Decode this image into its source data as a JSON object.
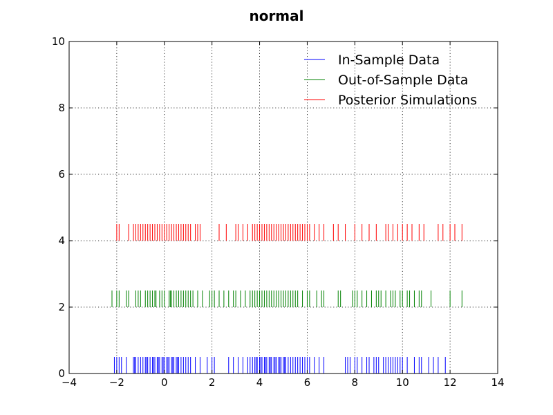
{
  "chart_data": {
    "type": "rug",
    "title": "normal",
    "xlabel": "",
    "ylabel": "",
    "xlim": [
      -4,
      14
    ],
    "ylim": [
      0,
      10
    ],
    "xticks": [
      "−4",
      "−2",
      "0",
      "2",
      "4",
      "6",
      "8",
      "10",
      "12",
      "14"
    ],
    "yticks": [
      "0",
      "2",
      "4",
      "6",
      "8",
      "10"
    ],
    "grid": true,
    "legend_position": "top-right",
    "series": [
      {
        "name": "In-Sample Data",
        "color": "#0000ff",
        "y_range": [
          0,
          0.5
        ],
        "values": [
          -2.1,
          -2.0,
          -1.9,
          -1.8,
          -1.6,
          -1.3,
          -1.25,
          -1.2,
          -1.1,
          -1.0,
          -0.9,
          -0.8,
          -0.75,
          -0.7,
          -0.6,
          -0.5,
          -0.45,
          -0.4,
          -0.3,
          -0.25,
          -0.2,
          -0.1,
          -0.05,
          0.0,
          0.1,
          0.15,
          0.2,
          0.3,
          0.35,
          0.4,
          0.5,
          0.55,
          0.6,
          0.7,
          0.8,
          0.9,
          1.0,
          1.1,
          1.3,
          1.5,
          1.8,
          2.0,
          2.1,
          2.7,
          2.9,
          3.1,
          3.3,
          3.5,
          3.6,
          3.7,
          3.8,
          3.85,
          3.9,
          4.0,
          4.05,
          4.1,
          4.2,
          4.25,
          4.3,
          4.4,
          4.45,
          4.5,
          4.6,
          4.65,
          4.7,
          4.8,
          4.85,
          4.9,
          5.0,
          5.05,
          5.1,
          5.2,
          5.3,
          5.4,
          5.5,
          5.6,
          5.7,
          5.8,
          5.9,
          6.0,
          6.1,
          6.3,
          6.5,
          6.7,
          7.6,
          7.7,
          7.8,
          8.0,
          8.1,
          8.3,
          8.5,
          8.6,
          8.8,
          8.9,
          9.0,
          9.2,
          9.3,
          9.4,
          9.5,
          9.6,
          9.7,
          9.8,
          9.9,
          10.0,
          10.2,
          10.5,
          10.7,
          10.8,
          11.1,
          11.3,
          11.5,
          11.8
        ]
      },
      {
        "name": "Out-of-Sample Data",
        "color": "#008000",
        "y_range": [
          2,
          2.5
        ],
        "values": [
          -2.2,
          -2.0,
          -1.9,
          -1.6,
          -1.5,
          -1.2,
          -1.1,
          -1.0,
          -0.8,
          -0.7,
          -0.6,
          -0.5,
          -0.4,
          -0.35,
          -0.2,
          -0.1,
          0.0,
          0.2,
          0.25,
          0.3,
          0.4,
          0.5,
          0.6,
          0.7,
          0.8,
          0.9,
          1.0,
          1.1,
          1.2,
          1.4,
          1.6,
          1.9,
          2.0,
          2.1,
          2.3,
          2.5,
          2.7,
          2.9,
          3.0,
          3.2,
          3.4,
          3.6,
          3.7,
          3.8,
          3.9,
          4.0,
          4.1,
          4.2,
          4.3,
          4.4,
          4.5,
          4.6,
          4.7,
          4.8,
          4.9,
          5.0,
          5.1,
          5.2,
          5.3,
          5.4,
          5.5,
          5.6,
          5.8,
          6.0,
          6.1,
          6.4,
          6.6,
          6.7,
          7.3,
          7.4,
          7.9,
          8.0,
          8.1,
          8.3,
          8.5,
          8.7,
          8.9,
          9.0,
          9.1,
          9.3,
          9.5,
          9.6,
          9.7,
          9.9,
          10.0,
          10.2,
          10.3,
          10.5,
          10.7,
          10.8,
          11.2,
          12.0,
          12.5
        ]
      },
      {
        "name": "Posterior Simulations",
        "color": "#ff0000",
        "y_range": [
          4,
          4.5
        ],
        "values": [
          -2.0,
          -1.9,
          -1.5,
          -1.3,
          -1.2,
          -1.1,
          -1.0,
          -0.9,
          -0.8,
          -0.7,
          -0.6,
          -0.5,
          -0.4,
          -0.3,
          -0.2,
          -0.1,
          0.0,
          0.1,
          0.2,
          0.3,
          0.4,
          0.5,
          0.6,
          0.7,
          0.8,
          0.9,
          1.0,
          1.1,
          1.3,
          1.4,
          1.5,
          2.3,
          2.6,
          3.0,
          3.1,
          3.3,
          3.5,
          3.7,
          3.8,
          3.9,
          4.0,
          4.1,
          4.2,
          4.3,
          4.4,
          4.5,
          4.6,
          4.7,
          4.8,
          4.9,
          5.0,
          5.1,
          5.2,
          5.3,
          5.4,
          5.5,
          5.6,
          5.7,
          5.8,
          5.9,
          6.0,
          6.1,
          6.3,
          6.5,
          6.7,
          7.1,
          7.3,
          7.6,
          8.0,
          8.3,
          8.6,
          8.9,
          9.3,
          9.4,
          9.6,
          9.8,
          10.0,
          10.2,
          10.4,
          10.7,
          10.9,
          11.5,
          11.7,
          12.0,
          12.2,
          12.5
        ]
      }
    ]
  }
}
